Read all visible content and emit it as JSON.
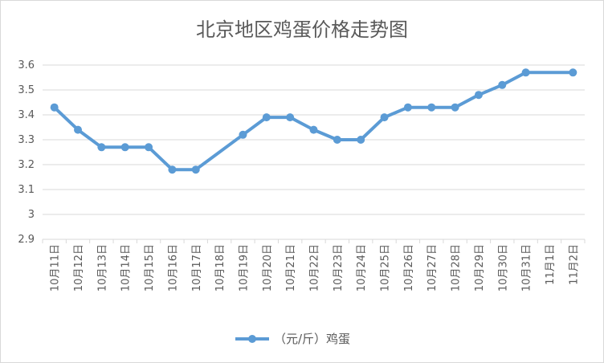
{
  "chart_data": {
    "type": "line",
    "title": "北京地区鸡蛋价格走势图",
    "xlabel": "",
    "ylabel": "",
    "categories": [
      "10月11日",
      "10月12日",
      "10月13日",
      "10月14日",
      "10月15日",
      "10月16日",
      "10月17日",
      "10月18日",
      "10月19日",
      "10月20日",
      "10月21日",
      "10月22日",
      "10月23日",
      "10月24日",
      "10月25日",
      "10月26日",
      "10月27日",
      "10月28日",
      "10月29日",
      "10月30日",
      "10月31日",
      "11月1日",
      "11月2日"
    ],
    "series": [
      {
        "name": "（元/斤）鸡蛋",
        "values": [
          3.43,
          3.34,
          3.27,
          3.27,
          3.27,
          3.18,
          3.18,
          null,
          3.32,
          3.39,
          3.39,
          3.34,
          3.3,
          3.3,
          3.39,
          3.43,
          3.43,
          3.43,
          3.48,
          3.52,
          3.57,
          null,
          3.57
        ]
      }
    ],
    "ylim": [
      2.9,
      3.6
    ],
    "yticks": [
      "2.9",
      "3",
      "3.1",
      "3.2",
      "3.3",
      "3.4",
      "3.5",
      "3.6"
    ],
    "grid": true,
    "legend": "bottom",
    "color": "#5b9bd5",
    "gap_handling": "connect"
  }
}
